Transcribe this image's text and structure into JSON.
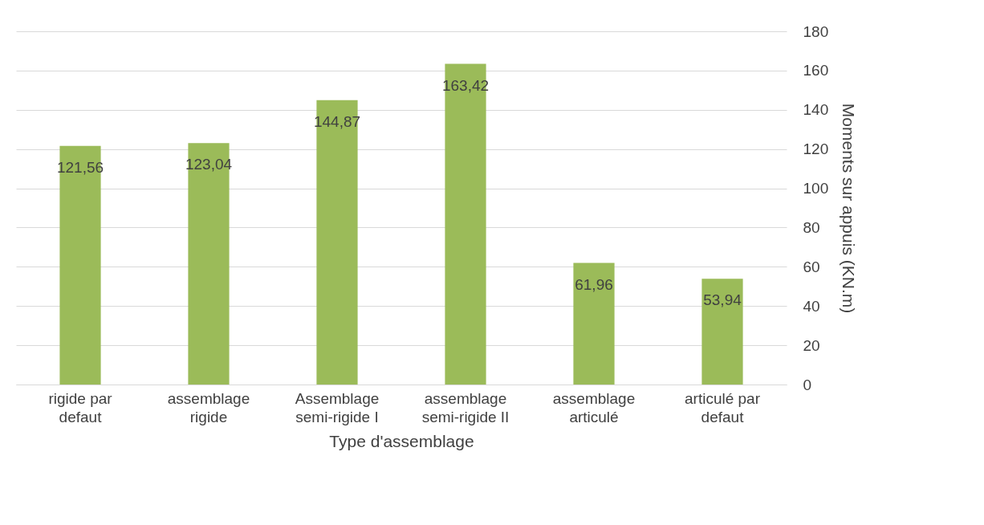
{
  "chart_data": {
    "type": "bar",
    "xlabel": "Type d'assemblage",
    "ylabel": "Moments  sur appuis (KN.m)",
    "categories": [
      "rigide par defaut",
      "assemblage rigide",
      "Assemblage semi-rigide I",
      "assemblage semi-rigide II",
      "assemblage articulé",
      "articulé par defaut"
    ],
    "values": [
      121.56,
      123.04,
      144.87,
      163.42,
      61.96,
      53.94
    ],
    "color": "#9bbb59",
    "value_labels": [
      "121,56",
      "123,04",
      "144,87",
      "163,42",
      "61,96",
      "53,94"
    ],
    "ylim": [
      0,
      180
    ],
    "yticks": [
      0,
      20,
      40,
      60,
      80,
      100,
      120,
      140,
      160,
      180
    ],
    "grid": "y"
  }
}
